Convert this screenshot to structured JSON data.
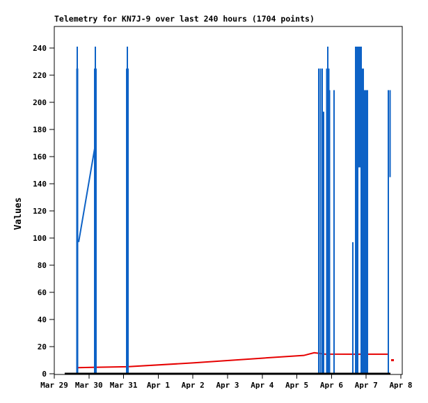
{
  "window": {
    "background": "#ffffff"
  },
  "chart_data": {
    "type": "line",
    "title": "Telemetry for KN7J-9 over last 240 hours (1704 points)",
    "ylabel": "Values",
    "xlabel": "",
    "ylim": [
      0,
      250
    ],
    "yticks": [
      0,
      20,
      40,
      60,
      80,
      100,
      120,
      140,
      160,
      180,
      200,
      220,
      240
    ],
    "xtick_labels": [
      "Mar 29",
      "Mar 30",
      "Mar 31",
      "Apr 1",
      "Apr 2",
      "Apr 3",
      "Apr 4",
      "Apr 5",
      "Apr 6",
      "Apr 7",
      "Apr 8"
    ],
    "x_axis_days": [
      0,
      10
    ],
    "grid": false,
    "legend": "none",
    "colors": {
      "raw_series": "#0d62c6",
      "trend_series": "#e60000",
      "axis": "#000000",
      "frame": "#000000"
    },
    "series": [
      {
        "name": "telemetry-values",
        "type": "spikes",
        "color_key": "raw_series",
        "spikes": [
          {
            "day": 0.663,
            "from": 0,
            "to": 225,
            "w": 3,
            "cap": 241
          },
          {
            "day": 1.185,
            "from": 0,
            "to": 225,
            "w": 4,
            "cap": 241
          },
          {
            "day": 2.108,
            "from": 0,
            "to": 225,
            "w": 4,
            "cap": 241
          },
          {
            "day": 7.631,
            "from": 0,
            "to": 225,
            "w": 2
          },
          {
            "day": 7.681,
            "from": 0,
            "to": 225,
            "w": 2
          },
          {
            "day": 7.731,
            "from": 0,
            "to": 225,
            "w": 2
          },
          {
            "day": 7.771,
            "from": 0,
            "to": 193,
            "w": 2
          },
          {
            "day": 7.892,
            "from": 0,
            "to": 225,
            "w": 5,
            "cap": 241
          },
          {
            "day": 7.942,
            "from": 0,
            "to": 209,
            "w": 2
          },
          {
            "day": 8.072,
            "from": 0,
            "to": 209,
            "w": 2
          },
          {
            "day": 8.614,
            "from": 0,
            "to": 97,
            "w": 2
          },
          {
            "day": 8.725,
            "from": 0,
            "to": 241,
            "w": 5
          },
          {
            "day": 8.805,
            "from": 152,
            "to": 241,
            "w": 3
          },
          {
            "day": 8.855,
            "from": 0,
            "to": 241,
            "w": 2
          },
          {
            "day": 8.906,
            "from": 0,
            "to": 225,
            "w": 3
          },
          {
            "day": 8.976,
            "from": 0,
            "to": 209,
            "w": 4
          },
          {
            "day": 9.036,
            "from": 0,
            "to": 209,
            "w": 2
          },
          {
            "day": 9.639,
            "from": 0,
            "to": 209,
            "w": 2
          },
          {
            "day": 9.689,
            "from": 145,
            "to": 209,
            "w": 2
          }
        ],
        "connectors": [
          {
            "x1": 0.703,
            "v1": 97,
            "x2": 1.185,
            "v2": 169
          }
        ]
      },
      {
        "name": "trend-line",
        "type": "line",
        "color_key": "trend_series",
        "width": 2,
        "points": [
          [
            0.663,
            4.5
          ],
          [
            2.108,
            5.2
          ],
          [
            4.0,
            8.0
          ],
          [
            6.0,
            11.5
          ],
          [
            7.2,
            13.5
          ],
          [
            7.5,
            15.5
          ],
          [
            7.8,
            14.5
          ],
          [
            9.639,
            14.4
          ]
        ],
        "isolated_dash": {
          "day": 9.72,
          "value": 10,
          "len_days": 0.08
        }
      },
      {
        "name": "zero-baseline",
        "type": "line",
        "color_key": "axis",
        "width": 3,
        "points": [
          [
            0.3,
            0
          ],
          [
            9.7,
            0
          ]
        ]
      }
    ]
  }
}
